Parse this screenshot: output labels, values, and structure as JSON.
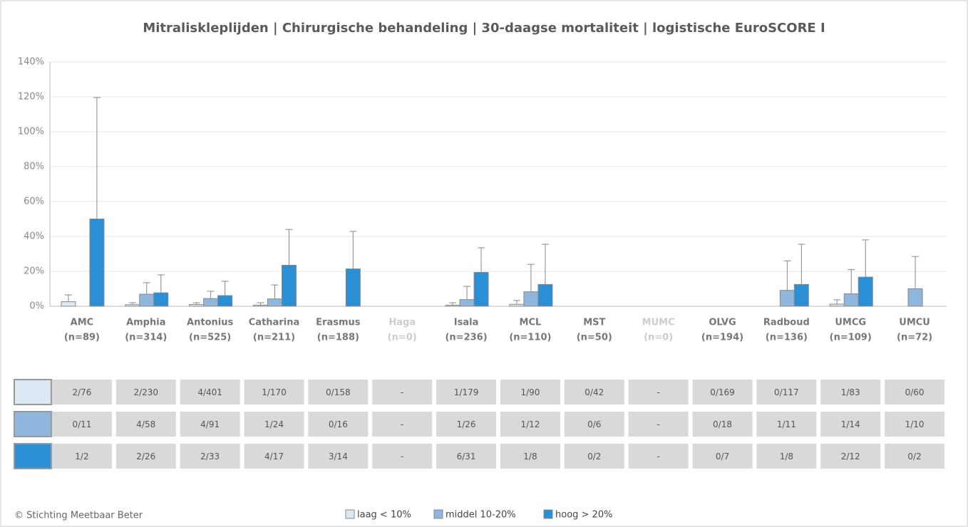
{
  "chart_data": {
    "type": "bar",
    "title": "Mitraliskleplijden | Chirurgische behandeling | 30-daagse mortaliteit | logistische EuroSCORE I",
    "categories": [
      "AMC",
      "Amphia",
      "Antonius",
      "Catharina",
      "Erasmus",
      "Haga",
      "Isala",
      "MCL",
      "MST",
      "MUMC",
      "OLVG",
      "Radboud",
      "UMCG",
      "UMCU"
    ],
    "category_counts": [
      "(n=89)",
      "(n=314)",
      "(n=525)",
      "(n=211)",
      "(n=188)",
      "(n=0)",
      "(n=236)",
      "(n=110)",
      "(n=50)",
      "(n=0)",
      "(n=194)",
      "(n=136)",
      "(n=109)",
      "(n=72)"
    ],
    "series": [
      {
        "name": "laag < 10%",
        "color": "#dce9f5",
        "values": [
          2.6,
          0.9,
          1.0,
          0.6,
          0,
          null,
          0.6,
          1.1,
          0,
          null,
          0,
          0,
          1.2,
          0
        ],
        "errors": [
          3.9,
          1.1,
          1.0,
          1.4,
          null,
          null,
          1.4,
          2.2,
          null,
          null,
          null,
          null,
          2.5,
          null
        ]
      },
      {
        "name": "middel 10-20%",
        "color": "#8fb6dc",
        "values": [
          0,
          6.9,
          4.4,
          4.2,
          0,
          null,
          3.8,
          8.3,
          0,
          null,
          0,
          9.1,
          7.1,
          10.0
        ],
        "errors": [
          null,
          6.6,
          4.2,
          8.0,
          null,
          null,
          7.6,
          15.7,
          null,
          null,
          null,
          16.9,
          13.9,
          18.5
        ]
      },
      {
        "name": "hoog > 20%",
        "color": "#2b8fd6",
        "values": [
          50.0,
          7.7,
          6.1,
          23.5,
          21.4,
          null,
          19.4,
          12.5,
          0,
          null,
          0,
          12.5,
          16.7,
          0
        ],
        "errors": [
          69.6,
          10.3,
          8.2,
          20.5,
          21.5,
          null,
          14.1,
          23.0,
          null,
          null,
          null,
          23.0,
          21.3,
          null
        ]
      }
    ],
    "ylim": [
      0,
      140
    ],
    "yticks": [
      {
        "value": 0,
        "label": "0%"
      },
      {
        "value": 20,
        "label": "20%"
      },
      {
        "value": 40,
        "label": "40%"
      },
      {
        "value": 60,
        "label": "60%"
      },
      {
        "value": 80,
        "label": "80%"
      },
      {
        "value": 100,
        "label": "100%"
      },
      {
        "value": 120,
        "label": "120%"
      },
      {
        "value": 140,
        "label": "140%"
      }
    ],
    "grid": true,
    "table": {
      "rows": [
        [
          "2/76",
          "2/230",
          "4/401",
          "1/170",
          "0/158",
          "-",
          "1/179",
          "1/90",
          "0/42",
          "-",
          "0/169",
          "0/117",
          "1/83",
          "0/60"
        ],
        [
          "0/11",
          "4/58",
          "4/91",
          "1/24",
          "0/16",
          "-",
          "1/26",
          "1/12",
          "0/6",
          "-",
          "0/18",
          "1/11",
          "1/14",
          "1/10"
        ],
        [
          "1/2",
          "2/26",
          "2/33",
          "4/17",
          "3/14",
          "-",
          "6/31",
          "1/8",
          "0/2",
          "-",
          "0/7",
          "1/8",
          "2/12",
          "0/2"
        ]
      ]
    },
    "source": "© Stichting Meetbaar Beter"
  }
}
